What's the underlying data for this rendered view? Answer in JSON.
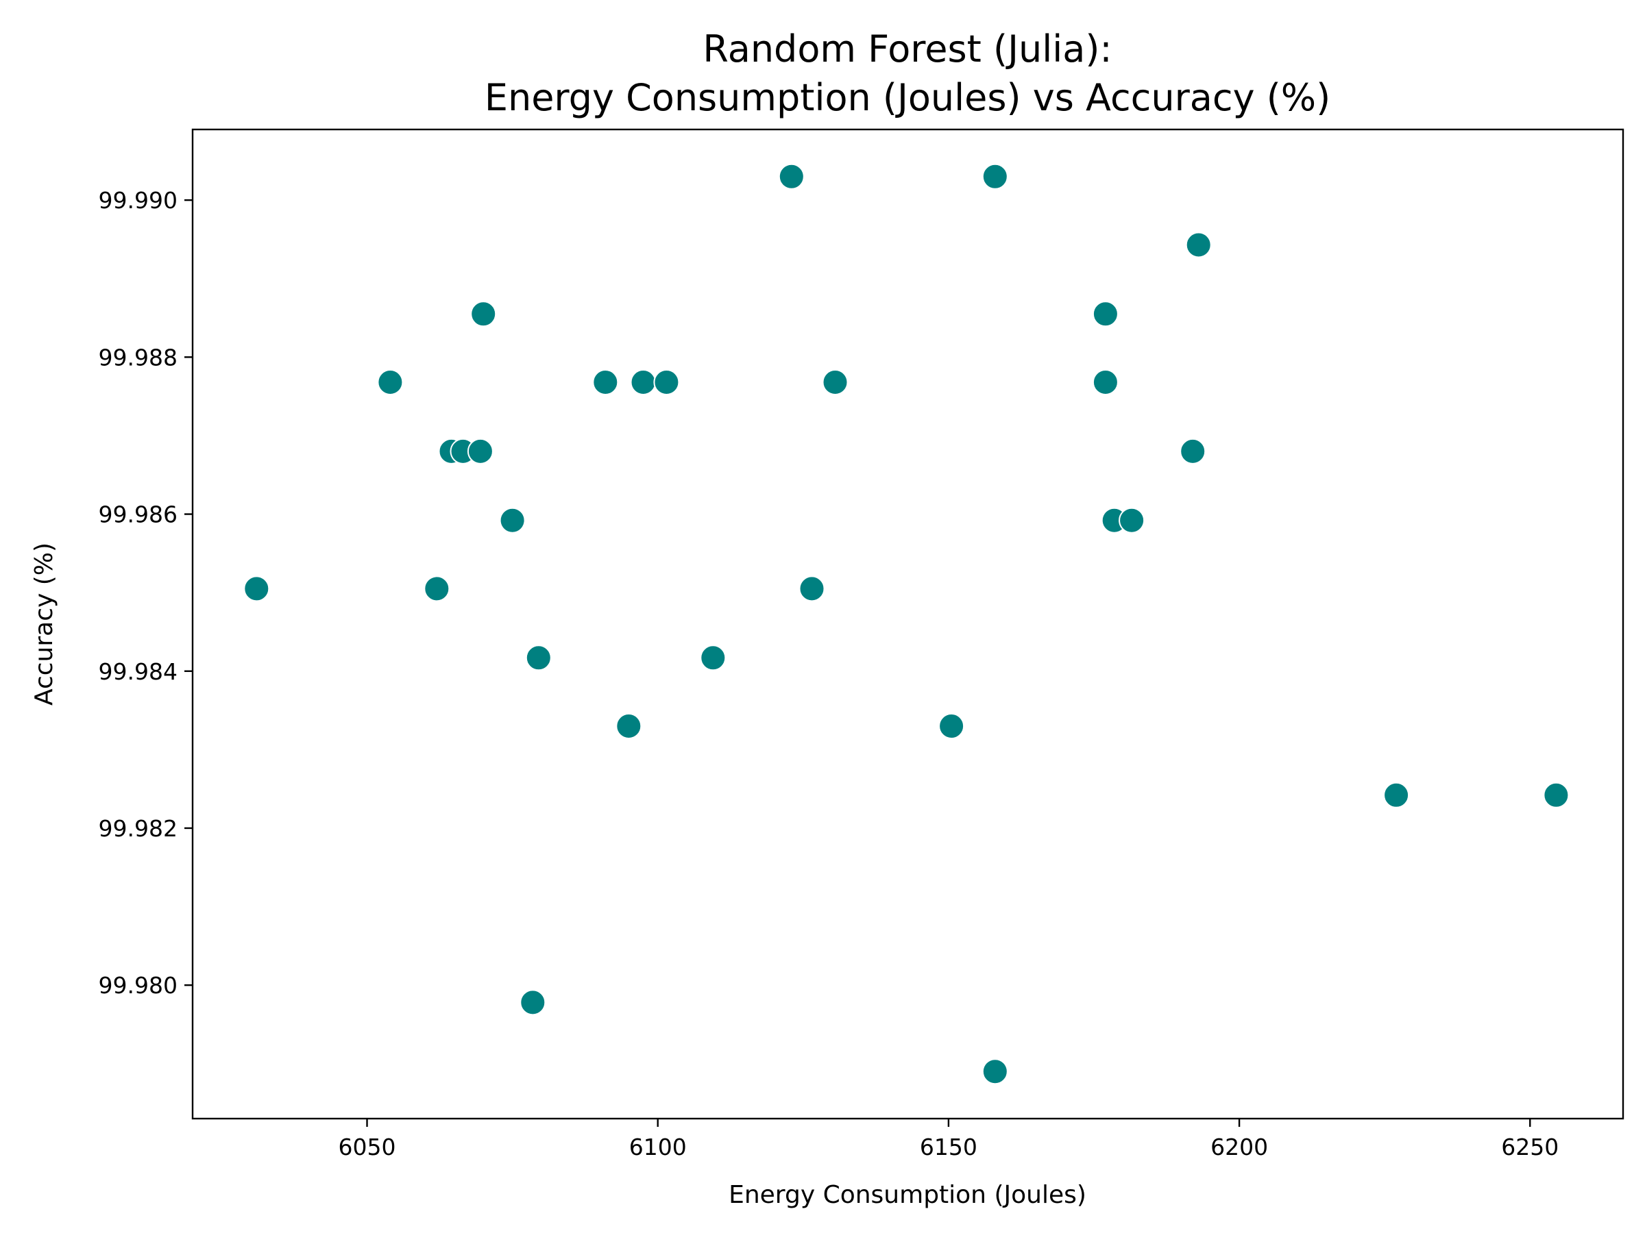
{
  "chart_data": {
    "type": "scatter",
    "title": [
      "Random Forest (Julia):",
      "Energy Consumption (Joules) vs Accuracy (%)"
    ],
    "xlabel": "Energy Consumption (Joules)",
    "ylabel": "Accuracy (%)",
    "xlim": [
      6020,
      6266
    ],
    "ylim": [
      99.9783,
      99.9909
    ],
    "xticks": [
      6050,
      6100,
      6150,
      6200,
      6250
    ],
    "xtick_labels": [
      "6050",
      "6100",
      "6150",
      "6200",
      "6250"
    ],
    "yticks": [
      99.98,
      99.982,
      99.984,
      99.986,
      99.988,
      99.99
    ],
    "ytick_labels": [
      "99.980",
      "99.982",
      "99.984",
      "99.986",
      "99.988",
      "99.990"
    ],
    "grid": false,
    "marker_color": "#008080",
    "marker_edge": "#ffffff",
    "points": [
      {
        "x": 6031.0,
        "y": 99.98505
      },
      {
        "x": 6054.0,
        "y": 99.98768
      },
      {
        "x": 6062.0,
        "y": 99.98505
      },
      {
        "x": 6064.5,
        "y": 99.9868
      },
      {
        "x": 6066.5,
        "y": 99.9868
      },
      {
        "x": 6069.5,
        "y": 99.9868
      },
      {
        "x": 6070.0,
        "y": 99.98855
      },
      {
        "x": 6075.0,
        "y": 99.98592
      },
      {
        "x": 6078.5,
        "y": 99.97978
      },
      {
        "x": 6079.5,
        "y": 99.98417
      },
      {
        "x": 6091.0,
        "y": 99.98768
      },
      {
        "x": 6095.0,
        "y": 99.9833
      },
      {
        "x": 6097.5,
        "y": 99.98768
      },
      {
        "x": 6101.5,
        "y": 99.98768
      },
      {
        "x": 6109.5,
        "y": 99.98417
      },
      {
        "x": 6123.0,
        "y": 99.9903
      },
      {
        "x": 6126.5,
        "y": 99.98505
      },
      {
        "x": 6130.5,
        "y": 99.98768
      },
      {
        "x": 6150.5,
        "y": 99.9833
      },
      {
        "x": 6158.0,
        "y": 99.9903
      },
      {
        "x": 6158.0,
        "y": 99.9789
      },
      {
        "x": 6177.0,
        "y": 99.98855
      },
      {
        "x": 6177.0,
        "y": 99.98768
      },
      {
        "x": 6178.5,
        "y": 99.98592
      },
      {
        "x": 6181.5,
        "y": 99.98592
      },
      {
        "x": 6192.0,
        "y": 99.9868
      },
      {
        "x": 6193.0,
        "y": 99.98943
      },
      {
        "x": 6227.0,
        "y": 99.98242
      },
      {
        "x": 6254.5,
        "y": 99.98242
      }
    ]
  }
}
